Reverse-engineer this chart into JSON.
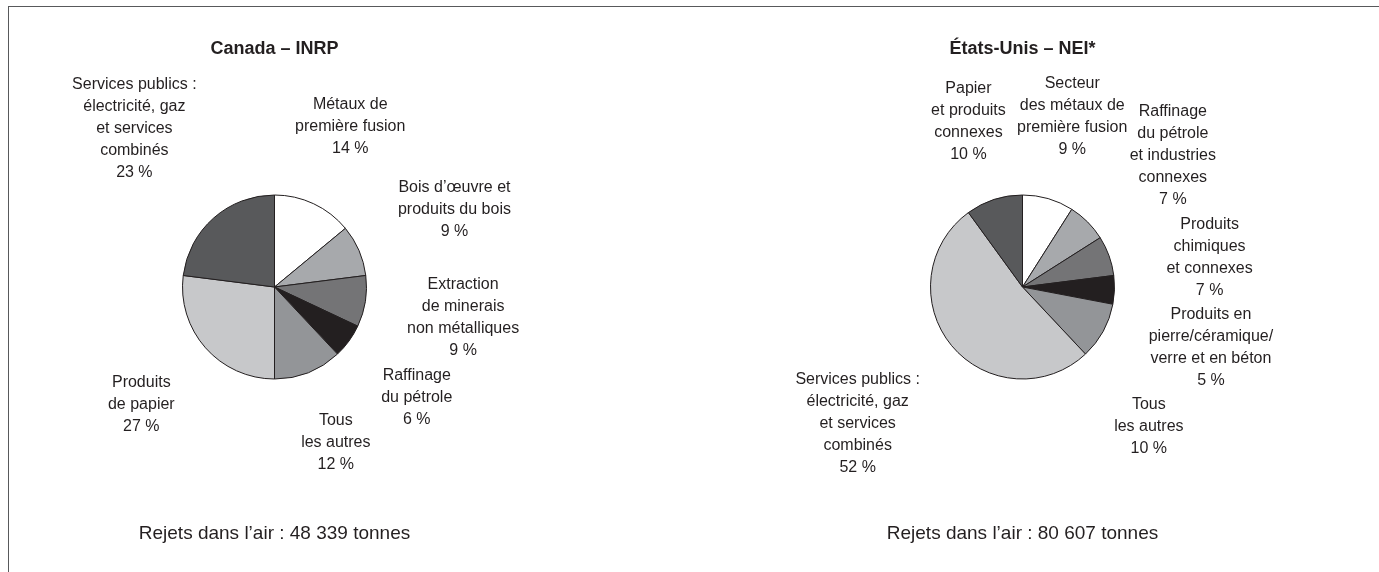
{
  "chart_data": [
    {
      "type": "pie",
      "title": "Canada – INRP",
      "categories": [
        "Métaux de\npremière fusion",
        "Bois d’œuvre et\nproduits du bois",
        "Extraction\nde minerais\nnon métalliques",
        "Raffinage\ndu pétrole",
        "Tous\nles autres",
        "Produits\nde papier",
        "Services publics :\nélectricité, gaz\net services\ncombinés"
      ],
      "values": [
        14,
        9,
        9,
        6,
        12,
        27,
        23
      ],
      "colors": [
        "#ffffff",
        "#a7a9ac",
        "#747476",
        "#231f20",
        "#939598",
        "#c7c8ca",
        "#58595b"
      ],
      "value_labels": [
        "14 %",
        "9 %",
        "9 %",
        "6 %",
        "12 %",
        "27 %",
        "23 %"
      ],
      "annotations": [
        "Rejets dans l’air : 48 339 tonnes"
      ]
    },
    {
      "type": "pie",
      "title": "États-Unis – NEI*",
      "categories": [
        "Secteur\ndes métaux de\npremière fusion",
        "Raffinage\ndu pétrole\net industries\nconnexes",
        "Produits\nchimiques\net connexes",
        "Produits en\npierre/céramique/\nverre et en béton",
        "Tous\nles autres",
        "Services publics :\nélectricité, gaz\net services\ncombinés",
        "Papier\net produits\nconnexes"
      ],
      "values": [
        9,
        7,
        7,
        5,
        10,
        52,
        10
      ],
      "colors": [
        "#ffffff",
        "#a7a9ac",
        "#747476",
        "#231f20",
        "#939598",
        "#c7c8ca",
        "#58595b"
      ],
      "value_labels": [
        "9 %",
        "7 %",
        "7 %",
        "5 %",
        "10 %",
        "52 %",
        "10 %"
      ],
      "annotations": [
        "Rejets dans l’air : 80 607 tonnes"
      ]
    }
  ]
}
